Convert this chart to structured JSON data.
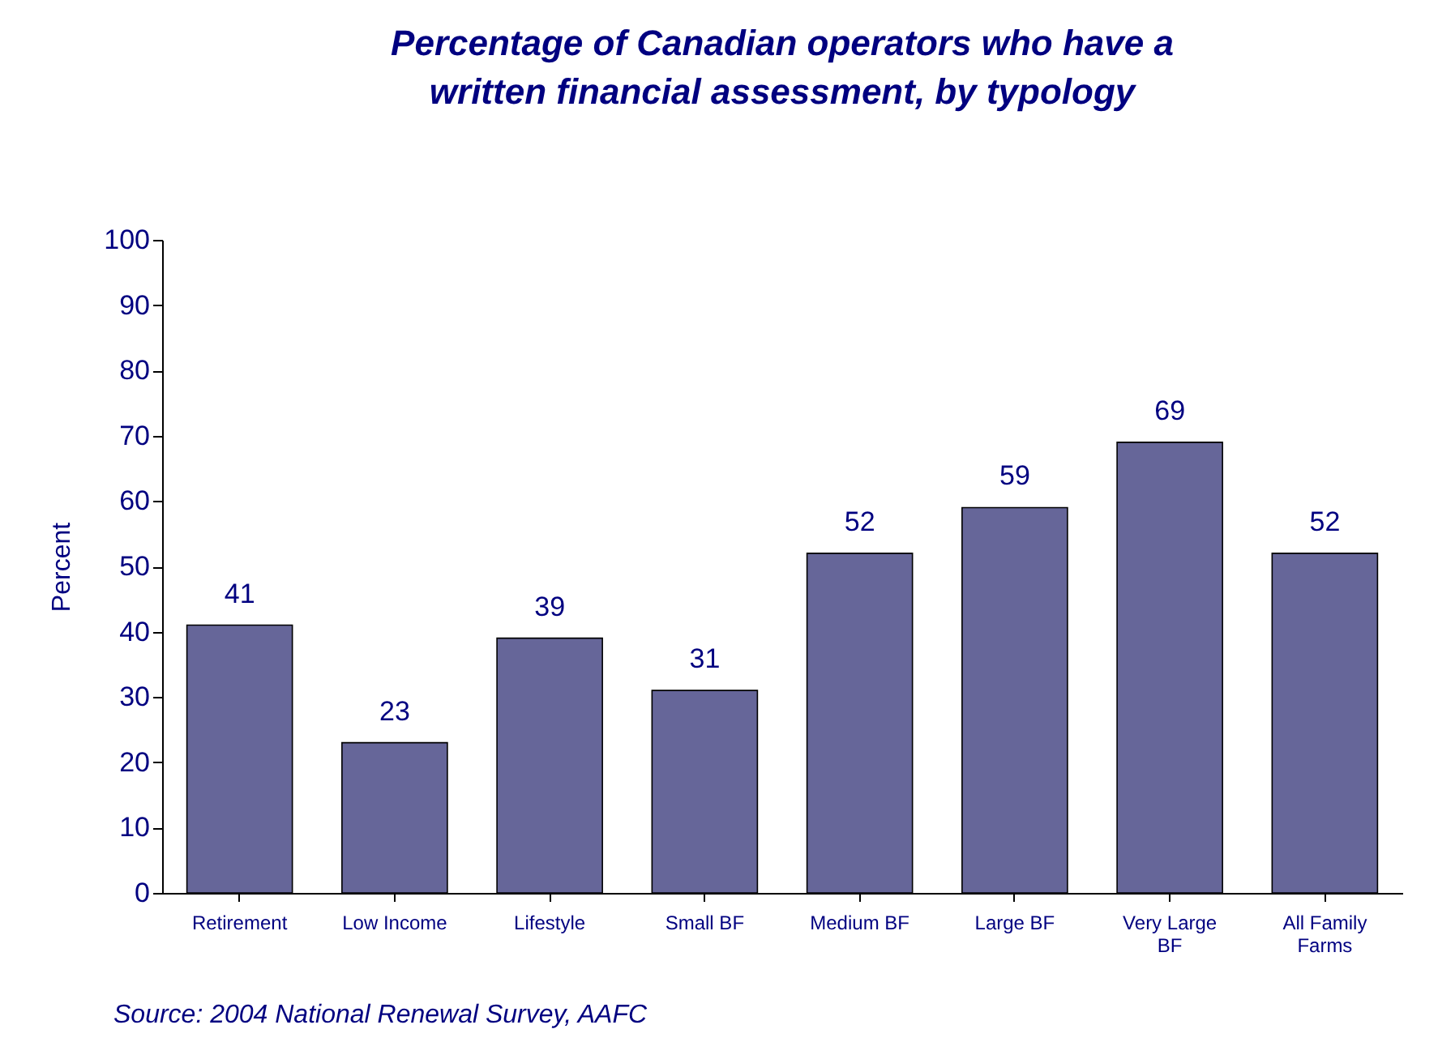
{
  "chart_data": {
    "type": "bar",
    "title": [
      "Percentage of Canadian operators who have a",
      "written financial assessment, by typology"
    ],
    "ylabel": "Percent",
    "categories": [
      "Retirement",
      "Low  Income",
      "Lifestyle",
      "Small BF",
      "Medium BF",
      "Large BF",
      "Very Large BF",
      "All Family Farms"
    ],
    "values": [
      41,
      23,
      39,
      31,
      52,
      59,
      69,
      52
    ],
    "color": "#666699",
    "data_labels": true,
    "ylim": [
      0,
      100
    ],
    "yticks": [
      0,
      10,
      20,
      30,
      40,
      50,
      60,
      70,
      80,
      90,
      100
    ],
    "grid": false,
    "annotations": [
      "Source: 2004 National Renewal Survey, AAFC"
    ]
  }
}
